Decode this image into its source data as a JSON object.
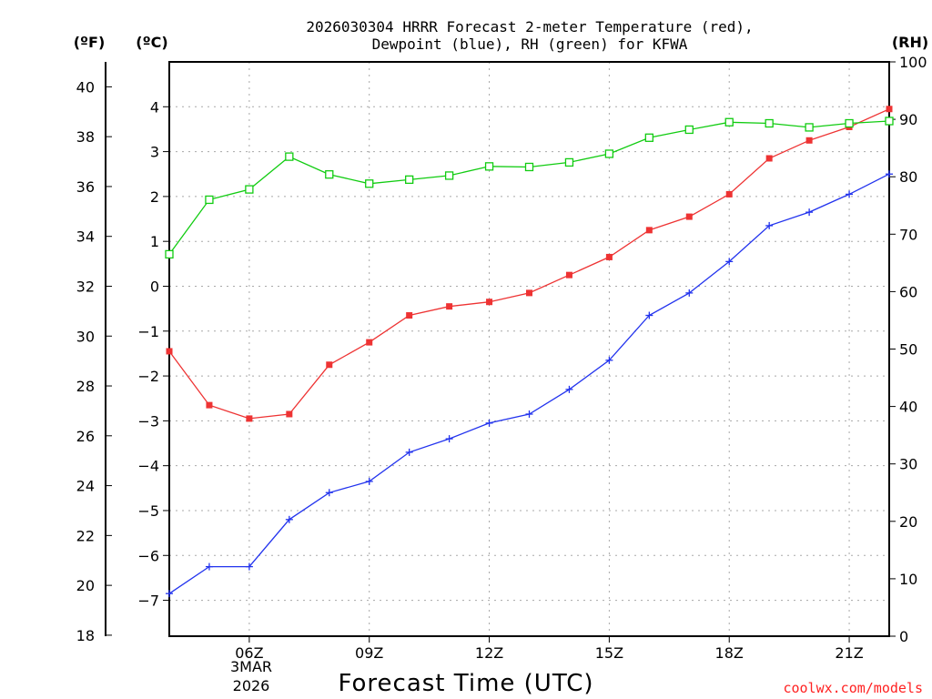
{
  "colors": {
    "temperature": "#ee3333",
    "dewpoint": "#2233ee",
    "rh": "#11cc11",
    "axis": "#000000",
    "grid": "#a8a8a8",
    "credit": "#ff2222"
  },
  "chart_data": {
    "type": "line",
    "title_line1": "2026030304 HRRR Forecast 2-meter Temperature (red),",
    "title_line2": "Dewpoint (blue), RH (green) for KFWA",
    "xlabel": "Forecast Time (UTC)",
    "credit": "coolwx.com/models",
    "unit_f": "(ºF)",
    "unit_c": "(ºC)",
    "unit_rh": "(RH)",
    "x_range_hours": [
      4,
      22
    ],
    "x": [
      4,
      5,
      6,
      7,
      8,
      9,
      10,
      11,
      12,
      13,
      14,
      15,
      16,
      17,
      18,
      19,
      20,
      21,
      22
    ],
    "x_ticks": [
      {
        "hour": 6,
        "label": "06Z"
      },
      {
        "hour": 9,
        "label": "09Z"
      },
      {
        "hour": 12,
        "label": "12Z"
      },
      {
        "hour": 15,
        "label": "15Z"
      },
      {
        "hour": 18,
        "label": "18Z"
      },
      {
        "hour": 21,
        "label": "21Z"
      }
    ],
    "date_label": [
      "3MAR",
      "2026"
    ],
    "y_celsius": {
      "min": -7.8,
      "max": 5,
      "ticks": [
        -7,
        -6,
        -5,
        -4,
        -3,
        -2,
        -1,
        0,
        1,
        2,
        3,
        4
      ]
    },
    "y_fahrenheit": {
      "ticks": [
        18,
        20,
        22,
        24,
        26,
        28,
        30,
        32,
        34,
        36,
        38,
        40
      ]
    },
    "y_rh": {
      "min": 0,
      "max": 100,
      "ticks": [
        0,
        10,
        20,
        30,
        40,
        50,
        60,
        70,
        80,
        90,
        100
      ]
    },
    "grid": true,
    "series": [
      {
        "name": "Temperature",
        "axis": "celsius",
        "marker": "square-filled",
        "color": "#ee3333",
        "values": [
          -1.45,
          -2.65,
          -2.95,
          -2.85,
          -1.75,
          -1.25,
          -0.65,
          -0.45,
          -0.35,
          -0.15,
          0.25,
          0.65,
          1.25,
          1.55,
          2.05,
          2.85,
          3.25,
          3.55,
          3.95
        ]
      },
      {
        "name": "Dewpoint",
        "axis": "celsius",
        "marker": "plus",
        "color": "#2233ee",
        "values": [
          -6.85,
          -6.25,
          -6.25,
          -5.2,
          -4.6,
          -4.35,
          -3.7,
          -3.4,
          -3.05,
          -2.85,
          -2.3,
          -1.65,
          -0.65,
          -0.15,
          0.55,
          1.35,
          1.65,
          2.05,
          2.5
        ]
      },
      {
        "name": "RH",
        "axis": "rh",
        "marker": "square-open",
        "color": "#11cc11",
        "values": [
          66.5,
          76,
          77.8,
          83.5,
          80.4,
          78.8,
          79.5,
          80.2,
          81.8,
          81.7,
          82.5,
          84,
          86.8,
          88.2,
          89.5,
          89.3,
          88.6,
          89.3,
          89.7
        ]
      }
    ]
  }
}
